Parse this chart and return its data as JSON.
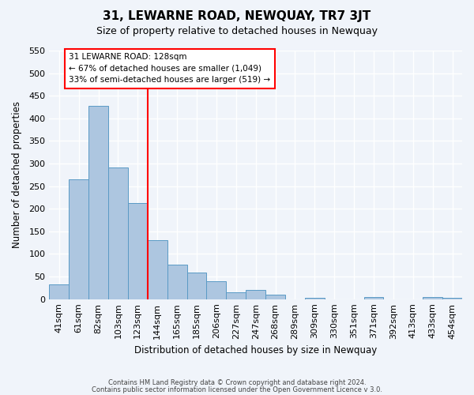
{
  "title": "31, LEWARNE ROAD, NEWQUAY, TR7 3JT",
  "subtitle": "Size of property relative to detached houses in Newquay",
  "xlabel": "Distribution of detached houses by size in Newquay",
  "ylabel": "Number of detached properties",
  "bar_labels": [
    "41sqm",
    "61sqm",
    "82sqm",
    "103sqm",
    "123sqm",
    "144sqm",
    "165sqm",
    "185sqm",
    "206sqm",
    "227sqm",
    "247sqm",
    "268sqm",
    "289sqm",
    "309sqm",
    "330sqm",
    "351sqm",
    "371sqm",
    "392sqm",
    "413sqm",
    "433sqm",
    "454sqm"
  ],
  "bar_values": [
    32,
    265,
    428,
    291,
    213,
    130,
    76,
    59,
    40,
    15,
    20,
    10,
    0,
    3,
    0,
    0,
    5,
    0,
    0,
    4,
    3
  ],
  "bar_color": "#adc6e0",
  "bar_edge_color": "#5a9ac5",
  "vline_x": 4.5,
  "vline_color": "red",
  "annotation_title": "31 LEWARNE ROAD: 128sqm",
  "annotation_line1": "← 67% of detached houses are smaller (1,049)",
  "annotation_line2": "33% of semi-detached houses are larger (519) →",
  "annotation_box_color": "white",
  "annotation_box_edge_color": "red",
  "ylim": [
    0,
    550
  ],
  "yticks": [
    0,
    50,
    100,
    150,
    200,
    250,
    300,
    350,
    400,
    450,
    500,
    550
  ],
  "footnote1": "Contains HM Land Registry data © Crown copyright and database right 2024.",
  "footnote2": "Contains public sector information licensed under the Open Government Licence v 3.0.",
  "bg_color": "#f0f4fa",
  "grid_color": "white"
}
